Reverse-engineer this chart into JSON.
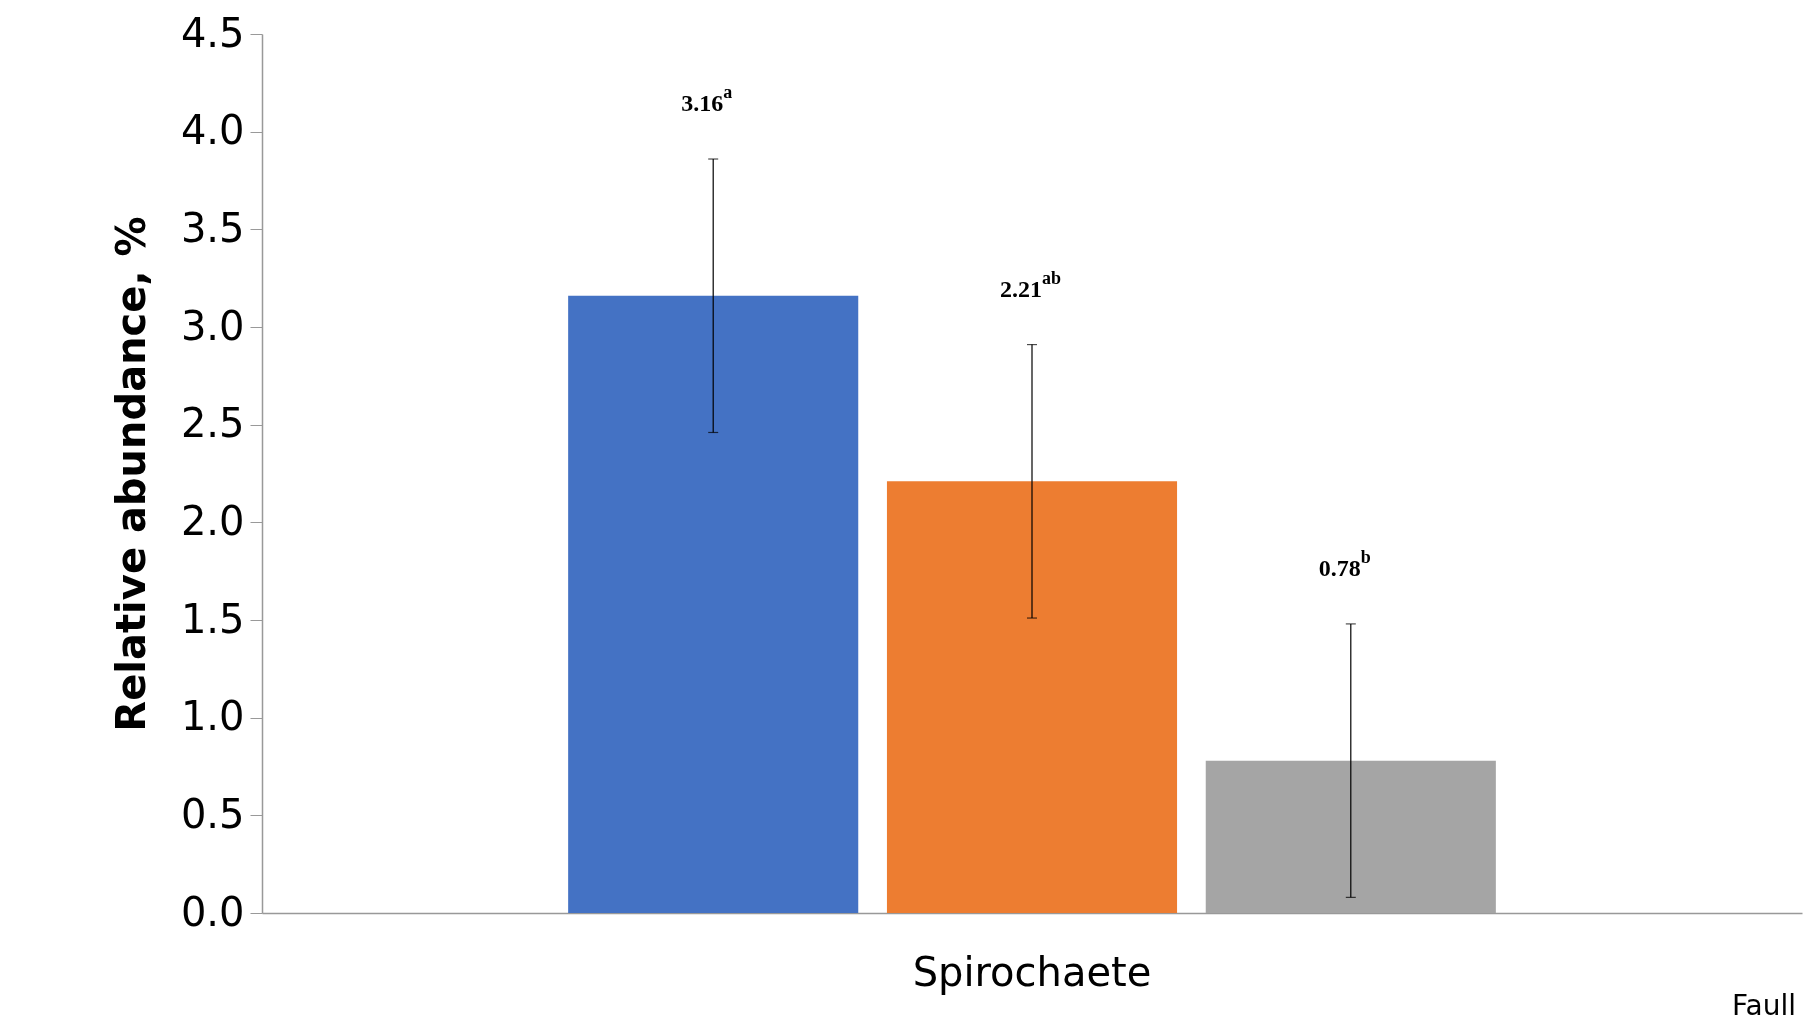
{
  "chart_data": {
    "type": "bar",
    "ylabel": "Relative abundance, %",
    "categories": [
      "Spirochaete"
    ],
    "series": [
      {
        "color": "#4472c4",
        "values": [
          3.16
        ],
        "errors": [
          0.7
        ],
        "value_labels": [
          "3.16$^{a}$"
        ]
      },
      {
        "color": "#ed7d31",
        "values": [
          2.21
        ],
        "errors": [
          0.7
        ],
        "value_labels": [
          "2.21$^{ab}$"
        ]
      },
      {
        "color": "#a5a5a5",
        "values": [
          0.78
        ],
        "errors": [
          0.7
        ],
        "value_labels": [
          "0.78$^{b}$"
        ]
      }
    ],
    "ylim": [
      0,
      4.5
    ],
    "yticks": [
      {
        "value": 0,
        "label": "0.0"
      },
      {
        "value": 0.5,
        "label": "0.5"
      },
      {
        "value": 1,
        "label": "1.0"
      },
      {
        "value": 1.5,
        "label": "1.5"
      },
      {
        "value": 2,
        "label": "2.0"
      },
      {
        "value": 2.5,
        "label": "2.5"
      },
      {
        "value": 3,
        "label": "3.0"
      },
      {
        "value": 3.5,
        "label": "3.5"
      },
      {
        "value": 4,
        "label": "4.0"
      },
      {
        "value": 4.5,
        "label": "4.5"
      }
    ],
    "annotations": [
      "Faull"
    ]
  }
}
